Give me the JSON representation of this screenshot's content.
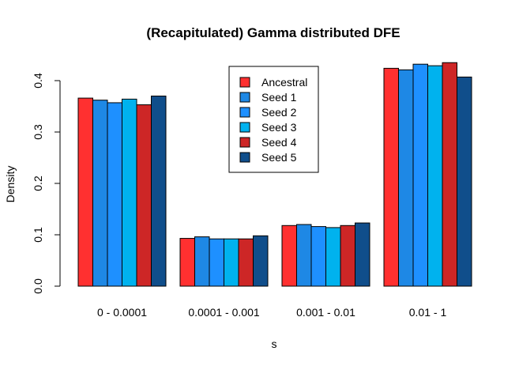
{
  "chart_data": {
    "type": "bar",
    "title": "(Recapitulated) Gamma distributed DFE",
    "xlabel": "s",
    "ylabel": "Density",
    "categories": [
      "0 - 0.0001",
      "0.0001 - 0.001",
      "0.001 - 0.01",
      "0.01 - 1"
    ],
    "ylim": [
      0,
      0.45
    ],
    "yticks": [
      0.0,
      0.1,
      0.2,
      0.3,
      0.4
    ],
    "ytick_labels": [
      "0.0",
      "0.1",
      "0.2",
      "0.3",
      "0.4"
    ],
    "grid": false,
    "legend_position": "top-center",
    "series": [
      {
        "name": "Ancestral",
        "color": "#FF3030",
        "values": [
          0.366,
          0.093,
          0.118,
          0.424
        ]
      },
      {
        "name": "Seed 1",
        "color": "#1E88E5",
        "values": [
          0.362,
          0.096,
          0.12,
          0.421
        ]
      },
      {
        "name": "Seed 2",
        "color": "#1E90FF",
        "values": [
          0.357,
          0.092,
          0.116,
          0.432
        ]
      },
      {
        "name": "Seed 3",
        "color": "#00B2EE",
        "values": [
          0.364,
          0.092,
          0.114,
          0.429
        ]
      },
      {
        "name": "Seed 4",
        "color": "#CD2626",
        "values": [
          0.353,
          0.092,
          0.118,
          0.435
        ]
      },
      {
        "name": "Seed 5",
        "color": "#104E8B",
        "values": [
          0.37,
          0.098,
          0.123,
          0.407
        ]
      }
    ]
  }
}
